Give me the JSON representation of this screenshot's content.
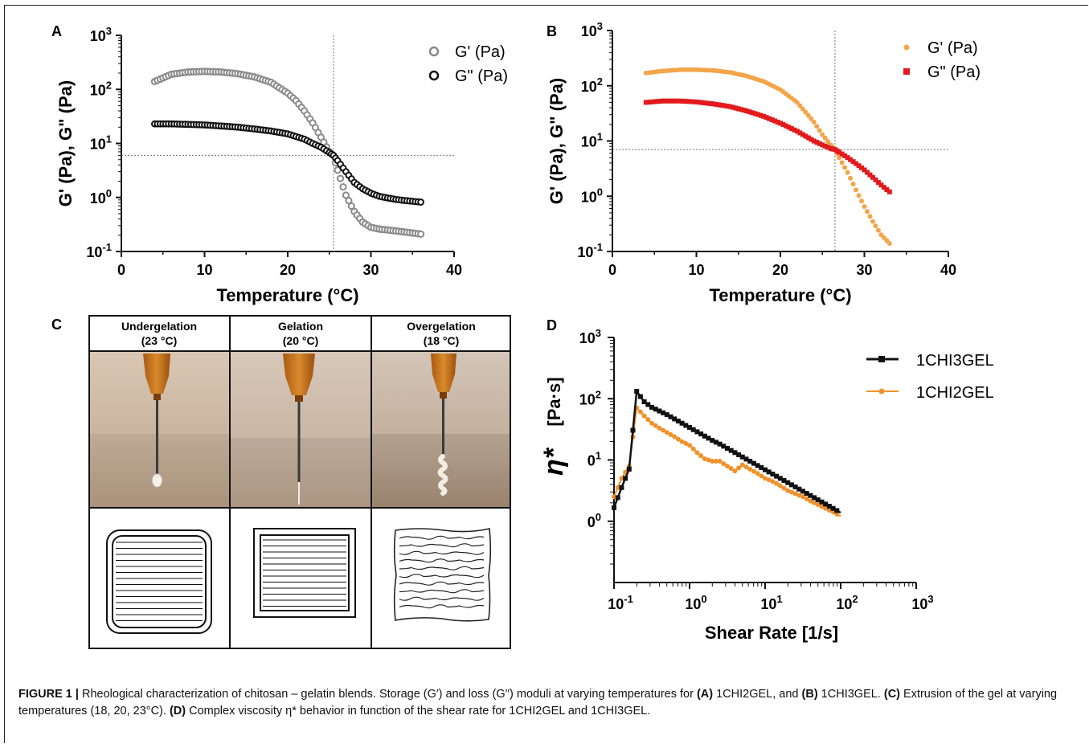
{
  "panels": {
    "A": "A",
    "B": "B",
    "C": "C",
    "D": "D"
  },
  "panel_c": {
    "headers": [
      {
        "line1": "Undergelation",
        "line2": "(23 °C)"
      },
      {
        "line1": "Gelation",
        "line2": "(20 °C)"
      },
      {
        "line1": "Overgelation",
        "line2": "(18 °C)"
      }
    ]
  },
  "caption": {
    "figure_label": "FIGURE 1 |",
    "text_1": " Rheological characterization of chitosan – gelatin blends. Storage (G′) and loss (G′′) moduli at varying temperatures for ",
    "ref_a": "(A)",
    "text_2": " 1CHI2GEL, and ",
    "ref_b": "(B)",
    "text_3": " 1CHI3GEL. ",
    "ref_c": "(C)",
    "text_4": " Extrusion of the gel at varying temperatures (18, 20, 23°C). ",
    "ref_d": "(D)",
    "text_5": " Complex viscosity η* behavior in function of the shear rate for 1CHI2GEL and 1CHI3GEL."
  },
  "colors": {
    "a_gprime": "#8a8a8a",
    "a_gdouble": "#111111",
    "b_gprime": "#f2a54a",
    "b_gdouble": "#e31a1c",
    "d_1chi3gel": "#111111",
    "d_1chi2gel": "#f0922c"
  },
  "chart_data": [
    {
      "id": "A",
      "type": "scatter",
      "xlabel": "Temperature (°C)",
      "ylabel": "G' (Pa), G\" (Pa)",
      "xlim": [
        0,
        40
      ],
      "ylim_log10": [
        -1,
        3
      ],
      "yscale": "log",
      "x_ticks": [
        "0",
        "10",
        "20",
        "30",
        "40"
      ],
      "y_ticks": [
        {
          "base": "10",
          "exp": "-1"
        },
        {
          "base": "10",
          "exp": "0"
        },
        {
          "base": "10",
          "exp": "1"
        },
        {
          "base": "10",
          "exp": "2"
        },
        {
          "base": "10",
          "exp": "3"
        }
      ],
      "crossover": {
        "x": 25.5,
        "y": 6
      },
      "legend_position": "top-right",
      "series": [
        {
          "name": "G' (Pa)",
          "x": [
            4,
            6,
            8,
            10,
            12,
            14,
            16,
            18,
            20,
            21,
            22,
            23,
            24,
            25,
            25.5,
            26,
            27,
            28,
            29,
            30,
            31,
            32,
            33,
            34,
            35,
            36
          ],
          "y": [
            140,
            190,
            210,
            215,
            210,
            195,
            170,
            135,
            85,
            62,
            40,
            24,
            13,
            7,
            6,
            3.2,
            1.1,
            0.55,
            0.35,
            0.28,
            0.26,
            0.25,
            0.24,
            0.23,
            0.22,
            0.21
          ]
        },
        {
          "name": "G\" (Pa)",
          "x": [
            4,
            6,
            8,
            10,
            12,
            14,
            16,
            18,
            20,
            22,
            23,
            24,
            25,
            25.5,
            26,
            27,
            28,
            29,
            30,
            31,
            32,
            33,
            34,
            35,
            36
          ],
          "y": [
            23,
            23,
            22.5,
            22,
            21,
            20,
            18.5,
            17,
            15,
            12,
            10,
            8.5,
            6.8,
            6,
            4.8,
            3.0,
            1.9,
            1.45,
            1.2,
            1.05,
            0.98,
            0.92,
            0.88,
            0.85,
            0.82
          ]
        }
      ]
    },
    {
      "id": "B",
      "type": "scatter",
      "xlabel": "Temperature (°C)",
      "ylabel": "G' (Pa), G\" (Pa)",
      "xlim": [
        0,
        40
      ],
      "ylim_log10": [
        -1,
        3
      ],
      "yscale": "log",
      "x_ticks": [
        "0",
        "10",
        "20",
        "30",
        "40"
      ],
      "y_ticks": [
        {
          "base": "10",
          "exp": "-1"
        },
        {
          "base": "10",
          "exp": "0"
        },
        {
          "base": "10",
          "exp": "1"
        },
        {
          "base": "10",
          "exp": "2"
        },
        {
          "base": "10",
          "exp": "3"
        }
      ],
      "crossover": {
        "x": 26.5,
        "y": 7
      },
      "legend_position": "top-right",
      "series": [
        {
          "name": "G' (Pa)",
          "x": [
            4,
            6,
            8,
            10,
            12,
            14,
            16,
            18,
            20,
            22,
            24,
            25,
            26,
            26.5,
            27,
            28,
            29,
            30,
            31,
            32,
            33
          ],
          "y": [
            170,
            185,
            195,
            195,
            190,
            175,
            150,
            120,
            85,
            50,
            22,
            13,
            8.5,
            7,
            5,
            2.7,
            1.3,
            0.65,
            0.35,
            0.2,
            0.14
          ]
        },
        {
          "name": "G\" (Pa)",
          "x": [
            4,
            6,
            8,
            10,
            12,
            14,
            16,
            18,
            20,
            22,
            24,
            25,
            26,
            26.5,
            27,
            28,
            29,
            30,
            31,
            32,
            33
          ],
          "y": [
            50,
            53,
            53,
            51,
            47,
            42,
            35,
            28,
            21,
            15,
            10,
            8.5,
            7.3,
            7,
            6.3,
            5.0,
            3.9,
            3.0,
            2.2,
            1.6,
            1.2
          ]
        }
      ]
    },
    {
      "id": "D",
      "type": "line",
      "xlabel": "Shear Rate [1/s]",
      "ylabel_symbol": "η*",
      "ylabel_unit": "[Pa·s]",
      "xscale": "log",
      "xlim_log10": [
        -1,
        3
      ],
      "ylim_log10": [
        -1,
        3
      ],
      "x_ticks": [
        {
          "base": "10",
          "exp": "-1"
        },
        {
          "base": "10",
          "exp": "0"
        },
        {
          "base": "10",
          "exp": "1"
        },
        {
          "base": "10",
          "exp": "2"
        },
        {
          "base": "10",
          "exp": "3"
        }
      ],
      "y_ticks": [
        {
          "base": "0",
          "exp": "0",
          "at": 0
        },
        {
          "base": "0",
          "exp": "1",
          "at": 1
        },
        {
          "base": "10",
          "exp": "2",
          "at": 2
        },
        {
          "base": "10",
          "exp": "3",
          "at": 3
        }
      ],
      "legend_position": "top-right",
      "series": [
        {
          "name": "1CHI3GEL",
          "log10_x": [
            -1,
            -0.9,
            -0.8,
            -0.7,
            -0.6,
            -0.5,
            -0.4,
            -0.3,
            -0.2,
            -0.1,
            0,
            0.1,
            0.2,
            0.3,
            0.4,
            0.5,
            0.6,
            0.7,
            0.8,
            0.9,
            1.0,
            1.1,
            1.2,
            1.3,
            1.4,
            1.5,
            1.6,
            1.7,
            1.8,
            1.9,
            2.0
          ],
          "log10_y": [
            0.22,
            0.55,
            0.85,
            2.12,
            1.95,
            1.86,
            1.8,
            1.74,
            1.67,
            1.6,
            1.53,
            1.46,
            1.39,
            1.32,
            1.26,
            1.19,
            1.12,
            1.05,
            0.98,
            0.91,
            0.84,
            0.77,
            0.7,
            0.63,
            0.56,
            0.49,
            0.42,
            0.35,
            0.28,
            0.21,
            0.14
          ]
        },
        {
          "name": "1CHI2GEL",
          "log10_x": [
            -1,
            -0.9,
            -0.8,
            -0.7,
            -0.6,
            -0.5,
            -0.4,
            -0.3,
            -0.2,
            -0.1,
            0,
            0.1,
            0.2,
            0.3,
            0.4,
            0.5,
            0.6,
            0.7,
            0.8,
            0.9,
            1.0,
            1.1,
            1.2,
            1.3,
            1.4,
            1.5,
            1.6,
            1.7,
            1.8,
            1.9,
            2.0
          ],
          "log10_y": [
            0.4,
            0.7,
            0.9,
            1.85,
            1.72,
            1.6,
            1.52,
            1.45,
            1.38,
            1.3,
            1.24,
            1.12,
            1.02,
            0.98,
            0.98,
            0.9,
            0.82,
            0.92,
            0.85,
            0.78,
            0.7,
            0.65,
            0.58,
            0.5,
            0.45,
            0.4,
            0.33,
            0.27,
            0.21,
            0.15,
            0.08
          ]
        }
      ]
    }
  ]
}
